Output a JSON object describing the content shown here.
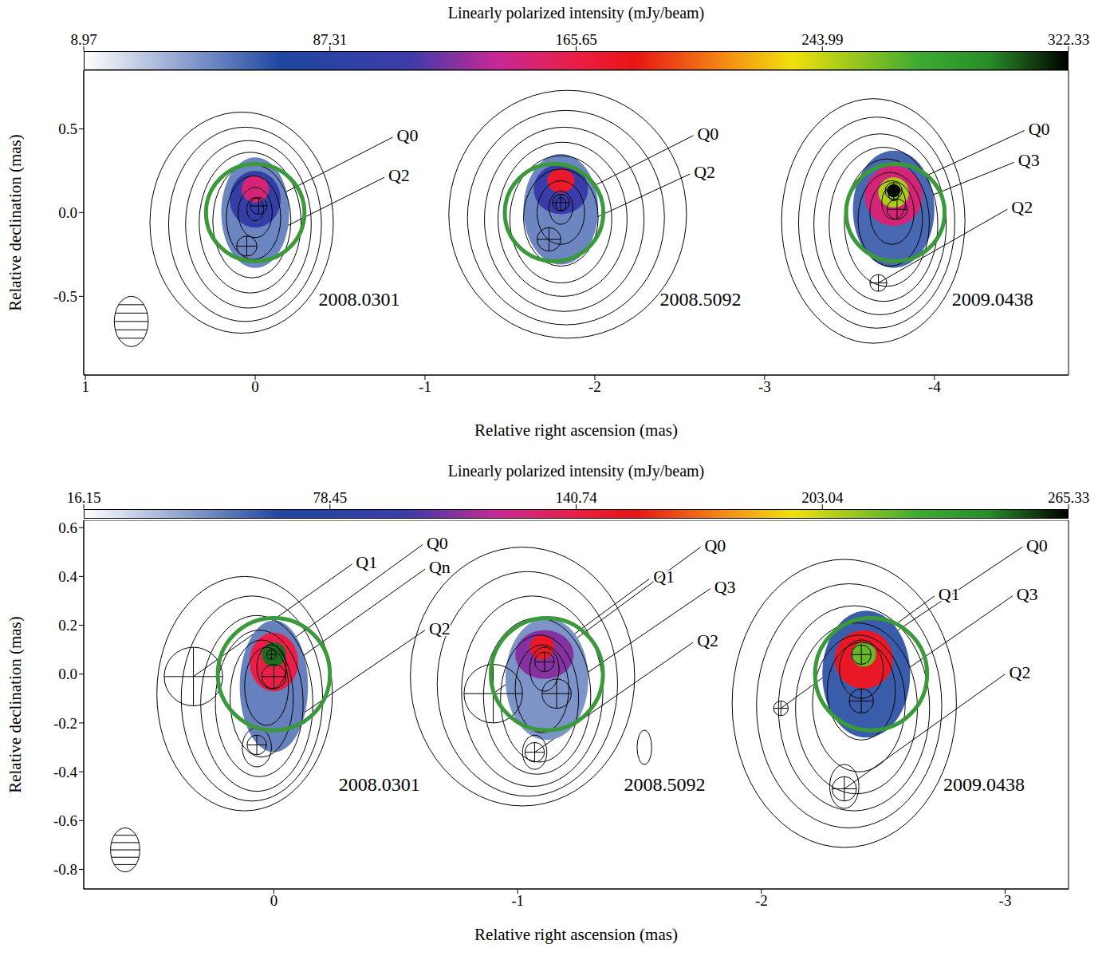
{
  "chart_data": [
    {
      "type": "contour",
      "colorbar": {
        "label": "Linearly polarized intensity (mJy/beam)",
        "range": [
          8.97,
          322.33
        ],
        "ticks": [
          8.97,
          87.31,
          165.65,
          243.99,
          322.33
        ]
      },
      "x_label": "Relative right ascension (mas)",
      "y_label": "Relative declination (mas)",
      "xlim": [
        1.01,
        -4.79
      ],
      "xticks": [
        1,
        0,
        -1,
        -2,
        -3,
        -4
      ],
      "ylim": [
        -0.97,
        0.85
      ],
      "yticks": [
        -0.5,
        {
          "value": 0,
          "label": "0.0"
        },
        0.5
      ],
      "beam": {
        "x": 0.73,
        "y": -0.65,
        "rx": 0.1,
        "ry": 0.15
      },
      "epochs": [
        {
          "label": "2008.0301",
          "label_x": -0.35,
          "label_y": -0.53,
          "circle": {
            "x": 0,
            "y": 0,
            "radius": 0.29,
            "color": "#3a9a3a"
          },
          "components": [
            {
              "name": "Q0",
              "x": -0.02,
              "y": 0.04,
              "radius": 0.05,
              "label_x": -0.81,
              "label_y": 0.45
            },
            {
              "name": "Q2",
              "x": 0.05,
              "y": -0.2,
              "radius": 0.06,
              "label_x": -0.76,
              "label_y": 0.21
            }
          ],
          "contours": [
            {
              "x": 0.08,
              "y": -0.06,
              "rx": 0.54,
              "ry": 0.66
            },
            {
              "x": 0.06,
              "y": -0.07,
              "rx": 0.45,
              "ry": 0.58
            },
            {
              "x": 0.04,
              "y": -0.07,
              "rx": 0.37,
              "ry": 0.5
            },
            {
              "x": 0.03,
              "y": -0.06,
              "rx": 0.3,
              "ry": 0.42
            },
            {
              "x": 0.02,
              "y": -0.05,
              "rx": 0.23,
              "ry": 0.34
            },
            {
              "x": 0.01,
              "y": -0.03,
              "rx": 0.16,
              "ry": 0.25
            },
            {
              "x": 0,
              "y": 0,
              "rx": 0.1,
              "ry": 0.15
            },
            {
              "x": 0,
              "y": 0.02,
              "rx": 0.05,
              "ry": 0.07
            }
          ],
          "polarized_intensity": [
            {
              "x": 0,
              "y": 0,
              "rx": 0.2,
              "ry": 0.33,
              "value": 50
            },
            {
              "x": 0,
              "y": 0.08,
              "rx": 0.15,
              "ry": 0.17,
              "value": 100
            },
            {
              "x": 0,
              "y": 0.14,
              "rx": 0.08,
              "ry": 0.08,
              "value": 150
            }
          ]
        },
        {
          "label": "2008.5092",
          "label_x": -2.36,
          "label_y": -0.53,
          "circle": {
            "x": -1.76,
            "y": 0,
            "radius": 0.29,
            "color": "#3a9a3a"
          },
          "components": [
            {
              "name": "Q0",
              "x": -1.8,
              "y": 0.06,
              "radius": 0.05,
              "label_x": -2.58,
              "label_y": 0.46
            },
            {
              "name": "Q2",
              "x": -1.73,
              "y": -0.16,
              "radius": 0.07,
              "label_x": -2.56,
              "label_y": 0.23
            }
          ],
          "contours": [
            {
              "x": -1.84,
              "y": -0.01,
              "rx": 0.7,
              "ry": 0.74
            },
            {
              "x": -1.83,
              "y": -0.03,
              "rx": 0.58,
              "ry": 0.64
            },
            {
              "x": -1.82,
              "y": -0.04,
              "rx": 0.47,
              "ry": 0.55
            },
            {
              "x": -1.81,
              "y": -0.04,
              "rx": 0.38,
              "ry": 0.46
            },
            {
              "x": -1.8,
              "y": -0.04,
              "rx": 0.3,
              "ry": 0.38
            },
            {
              "x": -1.8,
              "y": -0.03,
              "rx": 0.22,
              "ry": 0.29
            },
            {
              "x": -1.8,
              "y": 0,
              "rx": 0.14,
              "ry": 0.19
            },
            {
              "x": -1.8,
              "y": 0.03,
              "rx": 0.07,
              "ry": 0.1
            },
            {
              "x": -1.8,
              "y": 0.05,
              "rx": 0.03,
              "ry": 0.04
            }
          ],
          "polarized_intensity": [
            {
              "x": -1.8,
              "y": 0.02,
              "rx": 0.22,
              "ry": 0.33,
              "value": 50
            },
            {
              "x": -1.8,
              "y": 0.14,
              "rx": 0.16,
              "ry": 0.15,
              "value": 110
            },
            {
              "x": -1.8,
              "y": 0.19,
              "rx": 0.08,
              "ry": 0.07,
              "value": 175
            }
          ]
        },
        {
          "label": "2009.0438",
          "label_x": -4.08,
          "label_y": -0.53,
          "circle": {
            "x": -3.77,
            "y": 0,
            "radius": 0.29,
            "color": "#3a9a3a"
          },
          "components": [
            {
              "name": "Q0",
              "x": -3.76,
              "y": 0.13,
              "radius": 0.05,
              "label_x": -4.53,
              "label_y": 0.49
            },
            {
              "name": "Q3",
              "x": -3.78,
              "y": 0.02,
              "radius": 0.06,
              "label_x": -4.47,
              "label_y": 0.3
            },
            {
              "name": "Q2",
              "x": -3.67,
              "y": -0.42,
              "radius": 0.05,
              "label_x": -4.43,
              "label_y": 0.02
            }
          ],
          "contours": [
            {
              "x": -3.64,
              "y": -0.05,
              "rx": 0.54,
              "ry": 0.73
            },
            {
              "x": -3.66,
              "y": -0.06,
              "rx": 0.46,
              "ry": 0.63
            },
            {
              "x": -3.68,
              "y": -0.07,
              "rx": 0.39,
              "ry": 0.54
            },
            {
              "x": -3.7,
              "y": -0.07,
              "rx": 0.32,
              "ry": 0.46
            },
            {
              "x": -3.72,
              "y": -0.06,
              "rx": 0.25,
              "ry": 0.38
            },
            {
              "x": -3.74,
              "y": -0.04,
              "rx": 0.19,
              "ry": 0.28
            },
            {
              "x": -3.75,
              "y": 0,
              "rx": 0.13,
              "ry": 0.19
            },
            {
              "x": -3.76,
              "y": 0.06,
              "rx": 0.07,
              "ry": 0.1
            },
            {
              "x": -3.76,
              "y": 0.11,
              "rx": 0.03,
              "ry": 0.04
            }
          ],
          "polarized_intensity": [
            {
              "x": -3.76,
              "y": 0.02,
              "rx": 0.24,
              "ry": 0.35,
              "value": 60
            },
            {
              "x": -3.76,
              "y": 0.1,
              "rx": 0.17,
              "ry": 0.18,
              "value": 150
            },
            {
              "x": -3.76,
              "y": 0.12,
              "rx": 0.09,
              "ry": 0.09,
              "value": 250
            },
            {
              "x": -3.76,
              "y": 0.13,
              "rx": 0.04,
              "ry": 0.04,
              "value": 320
            }
          ]
        }
      ]
    },
    {
      "type": "contour",
      "colorbar": {
        "label": "Linearly polarized intensity (mJy/beam)",
        "range": [
          16.15,
          265.33
        ],
        "ticks": [
          16.15,
          78.45,
          140.74,
          203.04,
          265.33
        ]
      },
      "x_label": "Relative right ascension (mas)",
      "y_label": "Relative declination (mas)",
      "xlim": [
        0.78,
        -3.26
      ],
      "xticks": [
        0,
        -1,
        -2,
        -3
      ],
      "ylim": [
        -0.88,
        0.63
      ],
      "yticks": [
        -0.8,
        -0.6,
        -0.4,
        -0.2,
        {
          "value": 0,
          "label": "0.0"
        },
        0.2,
        0.4,
        0.6
      ],
      "beam": {
        "x": 0.61,
        "y": -0.72,
        "rx": 0.06,
        "ry": 0.09
      },
      "epochs": [
        {
          "label": "2008.0301",
          "label_x": -0.25,
          "label_y": -0.46,
          "circle": {
            "x": 0,
            "y": 0,
            "radius": 0.23,
            "color": "#3a9a3a"
          },
          "components": [
            {
              "name": "Q1",
              "x": 0.33,
              "y": -0.01,
              "radius": 0.12,
              "label_x": -0.32,
              "label_y": 0.45
            },
            {
              "name": "Q0",
              "x": 0.01,
              "y": 0.08,
              "radius": 0.02,
              "label_x": -0.61,
              "label_y": 0.53
            },
            {
              "name": "Qn",
              "x": 0,
              "y": -0.01,
              "radius": 0.05,
              "label_x": -0.62,
              "label_y": 0.43
            },
            {
              "name": "Q2",
              "x": 0.07,
              "y": -0.29,
              "radius": 0.04,
              "label_x": -0.62,
              "label_y": 0.18
            }
          ],
          "contours": [
            {
              "x": 0.12,
              "y": -0.08,
              "rx": 0.36,
              "ry": 0.48
            },
            {
              "x": 0.09,
              "y": -0.1,
              "rx": 0.29,
              "ry": 0.42
            },
            {
              "x": 0.07,
              "y": -0.12,
              "rx": 0.23,
              "ry": 0.36
            },
            {
              "x": 0.06,
              "y": -0.12,
              "rx": 0.18,
              "ry": 0.3
            },
            {
              "x": 0.05,
              "y": -0.1,
              "rx": 0.13,
              "ry": 0.24
            },
            {
              "x": 0.03,
              "y": -0.05,
              "rx": 0.09,
              "ry": 0.16
            },
            {
              "x": 0.01,
              "y": 0.03,
              "rx": 0.06,
              "ry": 0.09
            },
            {
              "x": 0.07,
              "y": -0.3,
              "rx": 0.06,
              "ry": 0.08
            }
          ],
          "polarized_intensity": [
            {
              "x": 0,
              "y": -0.05,
              "rx": 0.14,
              "ry": 0.27,
              "value": 50
            },
            {
              "x": 0,
              "y": 0.05,
              "rx": 0.1,
              "ry": 0.12,
              "value": 140
            },
            {
              "x": 0,
              "y": 0.08,
              "rx": 0.05,
              "ry": 0.05,
              "value": 250
            }
          ]
        },
        {
          "label": "2008.5092",
          "label_x": -1.42,
          "label_y": -0.46,
          "circle": {
            "x": -1.12,
            "y": 0,
            "radius": 0.23,
            "color": "#3a9a3a"
          },
          "components": [
            {
              "name": "Q0",
              "x": -1.11,
              "y": 0.05,
              "radius": 0.04,
              "label_x": -1.75,
              "label_y": 0.52
            },
            {
              "name": "Q1",
              "x": -0.9,
              "y": -0.08,
              "radius": 0.12,
              "label_x": -1.54,
              "label_y": 0.39
            },
            {
              "name": "Q3",
              "x": -1.16,
              "y": -0.08,
              "radius": 0.06,
              "label_x": -1.79,
              "label_y": 0.35
            },
            {
              "name": "Q2",
              "x": -1.07,
              "y": -0.32,
              "radius": 0.04,
              "label_x": -1.72,
              "label_y": 0.13
            }
          ],
          "contours": [
            {
              "x": -1.02,
              "y": -0.01,
              "rx": 0.46,
              "ry": 0.53
            },
            {
              "x": -1.04,
              "y": -0.04,
              "rx": 0.37,
              "ry": 0.46
            },
            {
              "x": -1.06,
              "y": -0.07,
              "rx": 0.29,
              "ry": 0.39
            },
            {
              "x": -1.08,
              "y": -0.09,
              "rx": 0.22,
              "ry": 0.32
            },
            {
              "x": -1.09,
              "y": -0.1,
              "rx": 0.16,
              "ry": 0.26
            },
            {
              "x": -1.1,
              "y": -0.06,
              "rx": 0.11,
              "ry": 0.18
            },
            {
              "x": -1.11,
              "y": 0.02,
              "rx": 0.06,
              "ry": 0.09
            },
            {
              "x": -1.07,
              "y": -0.32,
              "rx": 0.05,
              "ry": 0.07
            },
            {
              "x": -1.52,
              "y": -0.3,
              "rx": 0.03,
              "ry": 0.07
            }
          ],
          "polarized_intensity": [
            {
              "x": -1.12,
              "y": -0.02,
              "rx": 0.17,
              "ry": 0.25,
              "value": 45
            },
            {
              "x": -1.11,
              "y": 0.08,
              "rx": 0.12,
              "ry": 0.1,
              "value": 110
            },
            {
              "x": -1.1,
              "y": 0.11,
              "rx": 0.05,
              "ry": 0.05,
              "value": 150
            }
          ]
        },
        {
          "label": "2009.0438",
          "label_x": -2.73,
          "label_y": -0.46,
          "circle": {
            "x": -2.45,
            "y": 0,
            "radius": 0.23,
            "color": "#3a9a3a"
          },
          "components": [
            {
              "name": "Q0",
              "x": -2.41,
              "y": 0.08,
              "radius": 0.04,
              "label_x": -3.07,
              "label_y": 0.52
            },
            {
              "name": "Q1",
              "x": -2.08,
              "y": -0.14,
              "radius": 0.03,
              "label_x": -2.71,
              "label_y": 0.32
            },
            {
              "name": "Q3",
              "x": -2.41,
              "y": -0.11,
              "radius": 0.05,
              "label_x": -3.03,
              "label_y": 0.32
            },
            {
              "name": "Q2",
              "x": -2.34,
              "y": -0.47,
              "radius": 0.05,
              "label_x": -3.0,
              "label_y": 0
            }
          ],
          "contours": [
            {
              "x": -2.34,
              "y": -0.12,
              "rx": 0.46,
              "ry": 0.59
            },
            {
              "x": -2.36,
              "y": -0.13,
              "rx": 0.38,
              "ry": 0.5
            },
            {
              "x": -2.38,
              "y": -0.14,
              "rx": 0.31,
              "ry": 0.42
            },
            {
              "x": -2.39,
              "y": -0.14,
              "rx": 0.25,
              "ry": 0.35
            },
            {
              "x": -2.4,
              "y": -0.12,
              "rx": 0.19,
              "ry": 0.28
            },
            {
              "x": -2.41,
              "y": -0.07,
              "rx": 0.14,
              "ry": 0.2
            },
            {
              "x": -2.41,
              "y": 0.02,
              "rx": 0.09,
              "ry": 0.12
            },
            {
              "x": -2.34,
              "y": -0.46,
              "rx": 0.06,
              "ry": 0.09
            }
          ],
          "polarized_intensity": [
            {
              "x": -2.43,
              "y": 0,
              "rx": 0.18,
              "ry": 0.26,
              "value": 60
            },
            {
              "x": -2.42,
              "y": 0.06,
              "rx": 0.12,
              "ry": 0.12,
              "value": 150
            },
            {
              "x": -2.42,
              "y": 0.08,
              "rx": 0.05,
              "ry": 0.05,
              "value": 220
            }
          ]
        }
      ]
    }
  ]
}
